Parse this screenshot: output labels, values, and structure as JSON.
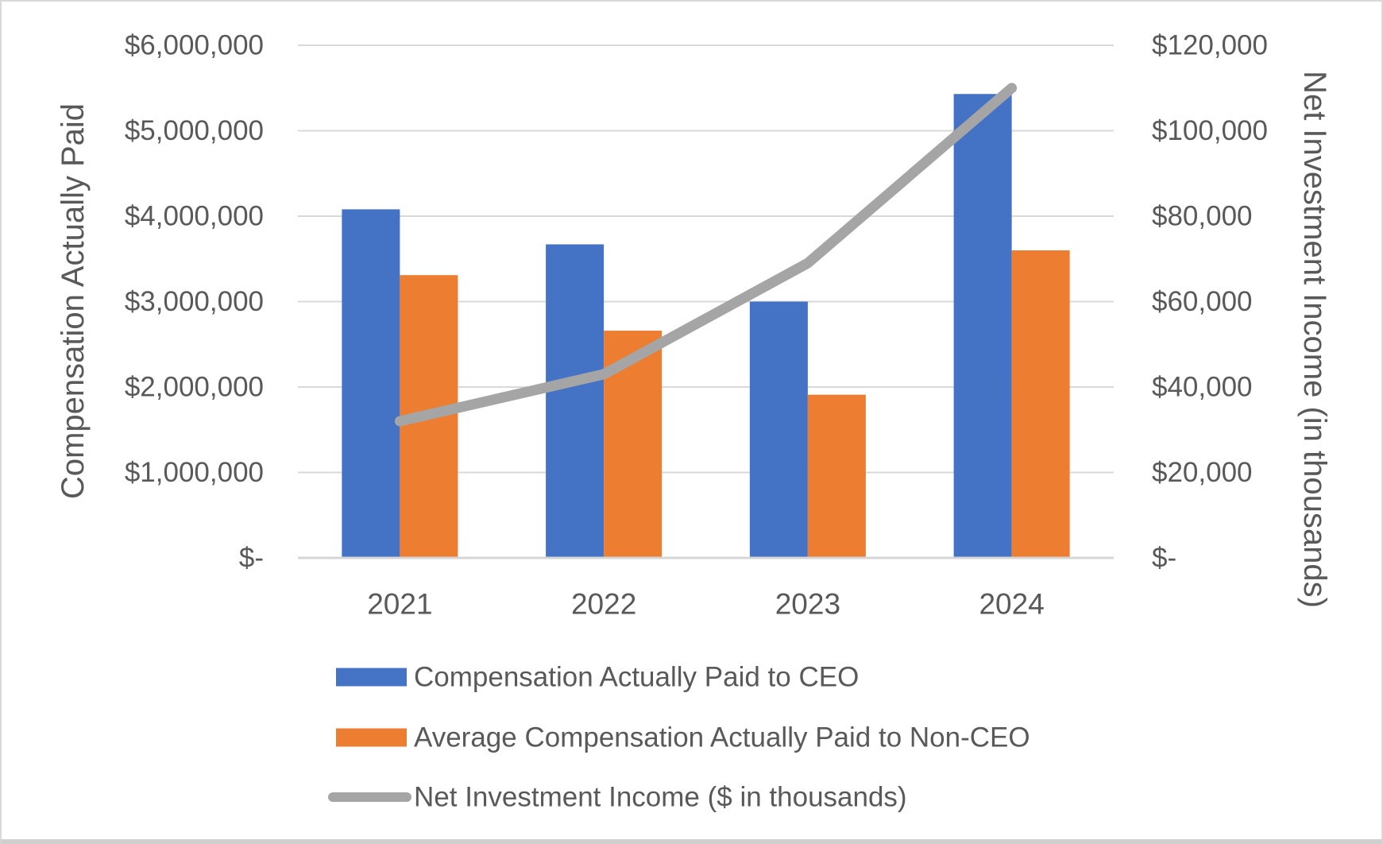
{
  "chart_data": {
    "type": "bar",
    "subtype": "clustered-column-with-line-combo",
    "title": "",
    "categories": [
      "2021",
      "2022",
      "2023",
      "2024"
    ],
    "series": [
      {
        "name": "Compensation Actually Paid to CEO",
        "type": "bar",
        "axis": "left",
        "color": "#4472C4",
        "values": [
          4080000,
          3670000,
          3000000,
          5430000
        ]
      },
      {
        "name": "Average Compensation Actually Paid to Non-CEO",
        "type": "bar",
        "axis": "left",
        "color": "#ED7D31",
        "values": [
          3310000,
          2660000,
          1910000,
          3600000
        ]
      },
      {
        "name": "Net Investment Income ($ in thousands)",
        "type": "line",
        "axis": "right",
        "color": "#A5A5A5",
        "values": [
          32000,
          43000,
          69000,
          110000
        ]
      }
    ],
    "left_axis": {
      "title": "Compensation Actually Paid",
      "min": 0,
      "max": 6000000,
      "step": 1000000,
      "tick_labels_bottom_to_top": [
        "$-",
        "$1,000,000",
        "$2,000,000",
        "$3,000,000",
        "$4,000,000",
        "$5,000,000",
        "$6,000,000"
      ]
    },
    "right_axis": {
      "title": "Net Investment Income (in thousands)",
      "min": 0,
      "max": 120000,
      "step": 20000,
      "tick_labels_bottom_to_top": [
        "$-",
        "$20,000",
        "$40,000",
        "$60,000",
        "$80,000",
        "$100,000",
        "$120,000"
      ]
    },
    "x_axis": {
      "tick_labels": [
        "2021",
        "2022",
        "2023",
        "2024"
      ]
    },
    "legend_position": "bottom-left",
    "grid": true,
    "gridline_color": "#D9D9D9",
    "axis_line_color": "#D6D6D6",
    "text_color": "#595959",
    "background_color": "#FFFFFF"
  },
  "legend": {
    "items": [
      {
        "swatch": "rect",
        "color": "#4472C4",
        "label": "Compensation Actually Paid to CEO"
      },
      {
        "swatch": "rect",
        "color": "#ED7D31",
        "label": "Average Compensation Actually Paid to Non-CEO"
      },
      {
        "swatch": "line",
        "color": "#A5A5A5",
        "label": "Net Investment Income ($ in thousands)"
      }
    ]
  }
}
